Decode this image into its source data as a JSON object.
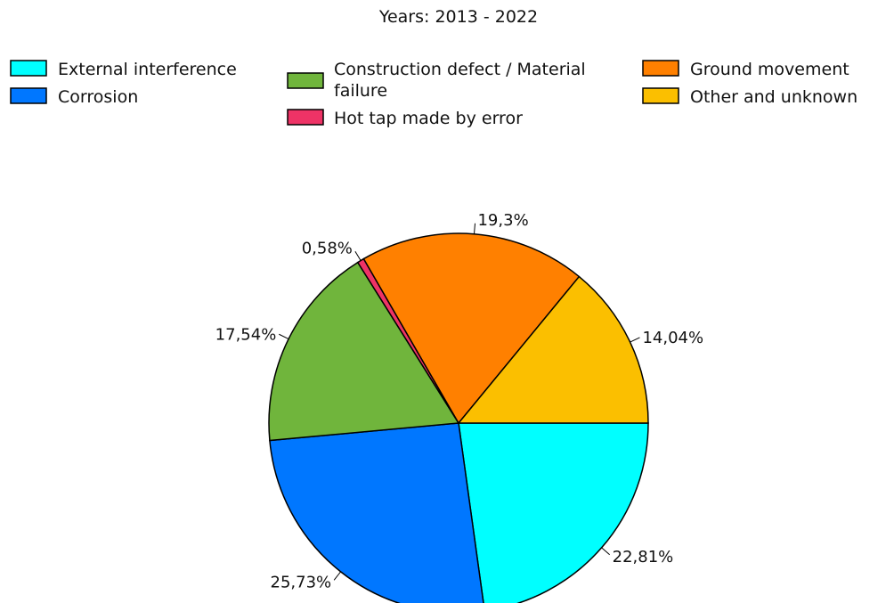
{
  "chart_data": {
    "type": "pie",
    "title": "Years: 2013 - 2022",
    "legend_placement": "top",
    "series": [
      {
        "name": "External interference",
        "value": 22.81,
        "label": "22,81%",
        "color": "#00FFFF"
      },
      {
        "name": "Corrosion",
        "value": 25.73,
        "label": "25,73%",
        "color": "#0077FF"
      },
      {
        "name": "Construction defect / Material failure",
        "value": 17.54,
        "label": "17,54%",
        "color": "#70B53C"
      },
      {
        "name": "Hot tap made by error",
        "value": 0.58,
        "label": "0,58%",
        "color": "#EE3366"
      },
      {
        "name": "Ground movement",
        "value": 19.3,
        "label": "19,3%",
        "color": "#FF8000"
      },
      {
        "name": "Other and unknown",
        "value": 14.04,
        "label": "14,04%",
        "color": "#FBBF00"
      }
    ]
  }
}
